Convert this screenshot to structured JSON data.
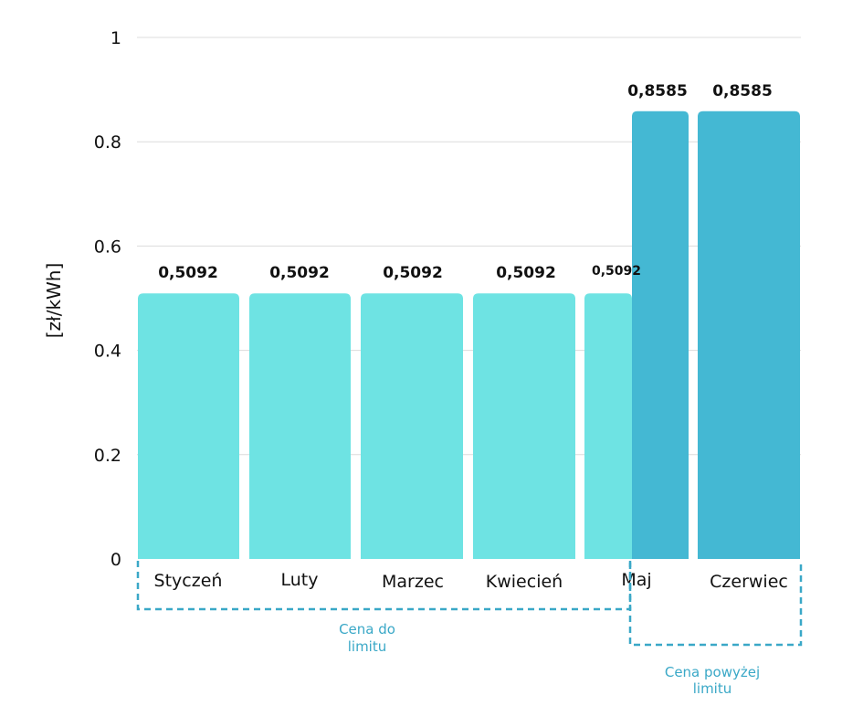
{
  "chart_data": {
    "type": "bar",
    "title": "",
    "xlabel": "",
    "ylabel": "[zł/kWh]",
    "ylim": [
      0,
      1
    ],
    "yticks": [
      0,
      0.2,
      0.4,
      0.6,
      0.8,
      1
    ],
    "ytick_labels": [
      "0",
      "0.2",
      "0.4",
      "0.6",
      "0.8",
      "1"
    ],
    "grid": true,
    "categories": [
      "Styczeń",
      "Luty",
      "Marzec",
      "Kwiecień",
      "Maj",
      "Czerwiec"
    ],
    "series": [
      {
        "values": [
          0.5092,
          0.5092,
          0.5092,
          0.5092,
          0.5092,
          null
        ],
        "value_labels": [
          "0,5092",
          "0,5092",
          "0,5092",
          "0,5092",
          "0,5092",
          ""
        ],
        "color": "#6ee3e3"
      },
      {
        "values": [
          null,
          null,
          null,
          null,
          0.8585,
          0.8585
        ],
        "value_labels": [
          "",
          "",
          "",
          "",
          "0,8585",
          "0,8585"
        ],
        "color": "#44b8d3"
      }
    ],
    "annotations": [
      {
        "label_lines": [
          "Cena do",
          "limitu"
        ],
        "categories": [
          "Styczeń",
          "Luty",
          "Marzec",
          "Kwiecień",
          "Maj"
        ],
        "style": "dashed-bracket",
        "color": "#3aa8c7"
      },
      {
        "label_lines": [
          "Cena powyżej",
          "limitu"
        ],
        "categories": [
          "Maj",
          "Czerwiec"
        ],
        "style": "dashed-bracket",
        "color": "#3aa8c7"
      }
    ]
  }
}
